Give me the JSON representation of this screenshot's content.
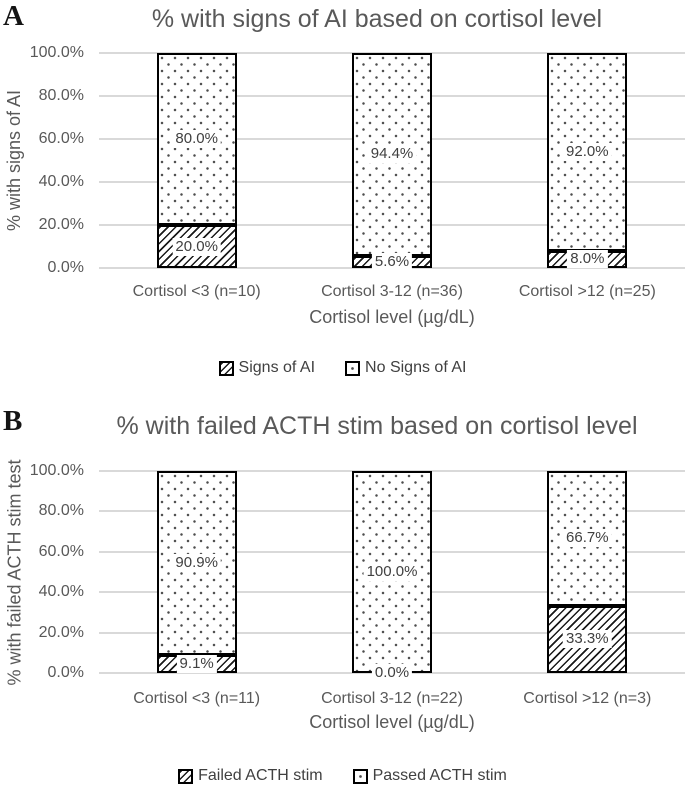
{
  "colors": {
    "title_text": "#595959",
    "axis_text": "#595959",
    "data_label_text": "#404040",
    "gridline": "#d9d9d9",
    "bar_border": "#000000",
    "bar_fill": "#ffffff"
  },
  "chart_data": [
    {
      "type": "bar",
      "stacked": true,
      "panel_letter": "A",
      "title": "% with signs of AI based on cortisol level",
      "ylabel": "% with signs of AI",
      "xlabel": "Cortisol level (µg/dL)",
      "categories": [
        "Cortisol <3 (n=10)",
        "Cortisol 3-12 (n=36)",
        "Cortisol >12 (n=25)"
      ],
      "series": [
        {
          "name": "Signs of AI",
          "pattern": "hatch",
          "values": [
            20.0,
            5.6,
            8.0
          ],
          "labels": [
            "20.0%",
            "5.6%",
            "8.0%"
          ]
        },
        {
          "name": "No Signs of AI",
          "pattern": "dots",
          "values": [
            80.0,
            94.4,
            92.0
          ],
          "labels": [
            "80.0%",
            "94.4%",
            "92.0%"
          ]
        }
      ],
      "ylim": [
        0,
        100
      ],
      "yticks": [
        "100.0%",
        "80.0%",
        "60.0%",
        "40.0%",
        "20.0%",
        "0.0%"
      ],
      "grid": true,
      "legend_position": "bottom"
    },
    {
      "type": "bar",
      "stacked": true,
      "panel_letter": "B",
      "title": "% with failed ACTH stim based on cortisol level",
      "ylabel": "% with failed ACTH stim test",
      "xlabel": "Cortisol level (µg/dL)",
      "categories": [
        "Cortisol <3 (n=11)",
        "Cortisol 3-12 (n=22)",
        "Cortisol >12 (n=3)"
      ],
      "series": [
        {
          "name": "Failed ACTH stim",
          "pattern": "hatch",
          "values": [
            9.1,
            0.0,
            33.3
          ],
          "labels": [
            "9.1%",
            "0.0%",
            "33.3%"
          ]
        },
        {
          "name": "Passed ACTH stim",
          "pattern": "dots",
          "values": [
            90.9,
            100.0,
            66.7
          ],
          "labels": [
            "90.9%",
            "100.0%",
            "66.7%"
          ]
        }
      ],
      "ylim": [
        0,
        100
      ],
      "yticks": [
        "100.0%",
        "80.0%",
        "60.0%",
        "40.0%",
        "20.0%",
        "0.0%"
      ],
      "grid": true,
      "legend_position": "bottom"
    }
  ]
}
